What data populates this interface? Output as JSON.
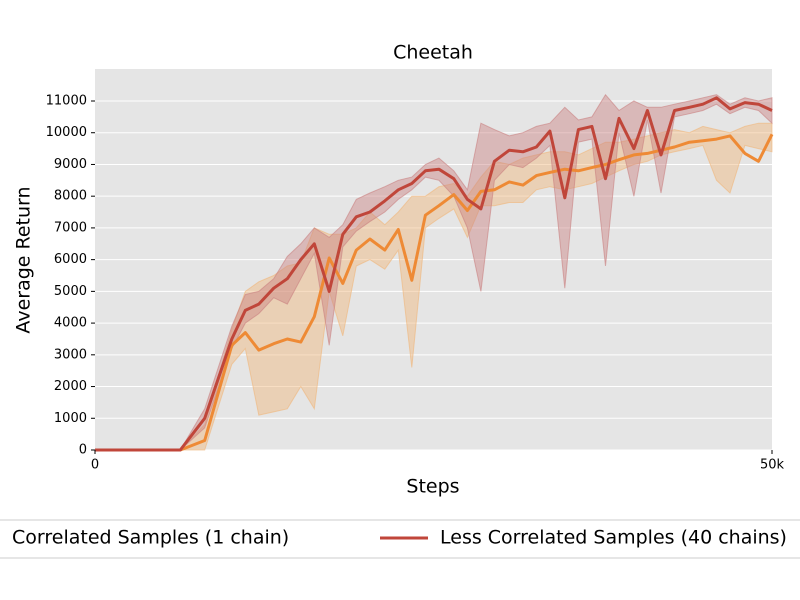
{
  "chart_data": {
    "type": "line",
    "title": "Cheetah",
    "xlabel": "Steps",
    "ylabel": "Average Return",
    "x": [
      0,
      6300,
      8100,
      10100,
      11100,
      12100,
      13200,
      14200,
      15200,
      16200,
      17300,
      18300,
      19300,
      20300,
      21400,
      22400,
      23400,
      24400,
      25400,
      26500,
      27500,
      28500,
      29500,
      30600,
      31600,
      32600,
      33600,
      34700,
      35700,
      36700,
      37700,
      38700,
      39800,
      40800,
      41800,
      42800,
      43900,
      44900,
      45900,
      46900,
      48000,
      49000,
      50000
    ],
    "series": [
      {
        "name": "Correlated Samples (1 chain)",
        "color": "#ee8a35",
        "band_color": "#f0b57a",
        "values": [
          0,
          0,
          300,
          3300,
          3700,
          3150,
          3350,
          3500,
          3400,
          4200,
          6050,
          5250,
          6300,
          6650,
          6300,
          6950,
          5350,
          7400,
          7700,
          8050,
          7550,
          8150,
          8200,
          8450,
          8350,
          8650,
          8750,
          8850,
          8800,
          8900,
          9000,
          9150,
          9300,
          9350,
          9450,
          9550,
          9700,
          9750,
          9800,
          9900,
          9350,
          9100,
          9950
        ],
        "lower": [
          0,
          0,
          0,
          2700,
          3200,
          1100,
          1200,
          1300,
          2000,
          1300,
          5000,
          3600,
          5800,
          6000,
          5700,
          6300,
          2600,
          7000,
          7300,
          7600,
          6700,
          7700,
          7700,
          7800,
          7800,
          8200,
          8300,
          8200,
          8300,
          8400,
          8600,
          8800,
          9000,
          9100,
          9300,
          9400,
          9500,
          9600,
          8500,
          8100,
          9600,
          9500,
          9400
        ],
        "upper": [
          0,
          0,
          800,
          3800,
          5000,
          5300,
          5500,
          5800,
          5900,
          7000,
          6800,
          6800,
          7000,
          7500,
          7100,
          7500,
          8000,
          8000,
          8300,
          8400,
          8000,
          8600,
          9100,
          9000,
          9200,
          9300,
          9400,
          9400,
          9300,
          9500,
          9700,
          9700,
          9800,
          9900,
          10000,
          10100,
          10000,
          10200,
          10100,
          10000,
          10200,
          10300,
          10300
        ]
      },
      {
        "name": "Less Correlated Samples (40 chains)",
        "color": "#c0463a",
        "band_color": "#c98080",
        "values": [
          0,
          0,
          1000,
          3500,
          4400,
          4600,
          5100,
          5400,
          6000,
          6500,
          5000,
          6800,
          7350,
          7500,
          7850,
          8200,
          8400,
          8800,
          8850,
          8550,
          7900,
          7600,
          9100,
          9450,
          9400,
          9550,
          10050,
          7950,
          10100,
          10200,
          8550,
          10450,
          9500,
          10700,
          9300,
          10700,
          10800,
          10900,
          11100,
          10750,
          10950,
          10900,
          10700
        ],
        "lower": [
          0,
          0,
          700,
          3200,
          4000,
          4300,
          4800,
          4600,
          5400,
          6200,
          3300,
          6400,
          6900,
          7200,
          7500,
          7900,
          8200,
          8600,
          8500,
          8000,
          7000,
          5000,
          8500,
          9000,
          8900,
          9200,
          9600,
          5100,
          9700,
          9800,
          5800,
          10000,
          8000,
          10400,
          8100,
          10500,
          10600,
          10700,
          10900,
          10600,
          10800,
          10700,
          10300
        ],
        "upper": [
          0,
          0,
          1300,
          3900,
          4900,
          5000,
          5400,
          6100,
          6500,
          7000,
          6700,
          7100,
          7900,
          8100,
          8300,
          8500,
          8600,
          9000,
          9200,
          8800,
          8200,
          10300,
          10100,
          9900,
          10000,
          10200,
          10300,
          10800,
          10400,
          10500,
          11200,
          10700,
          11000,
          10800,
          10800,
          10900,
          11000,
          11100,
          11200,
          10900,
          11100,
          11000,
          11100
        ]
      }
    ],
    "xlim": [
      0,
      50000
    ],
    "xticks": [
      0,
      {
        "value": 50000,
        "label": "50k"
      }
    ],
    "ylim": [
      0,
      11000
    ],
    "yticks": [
      0,
      1000,
      2000,
      3000,
      4000,
      5000,
      6000,
      7000,
      8000,
      9000,
      10000,
      11000
    ],
    "grid": true,
    "legend": "bottom"
  }
}
